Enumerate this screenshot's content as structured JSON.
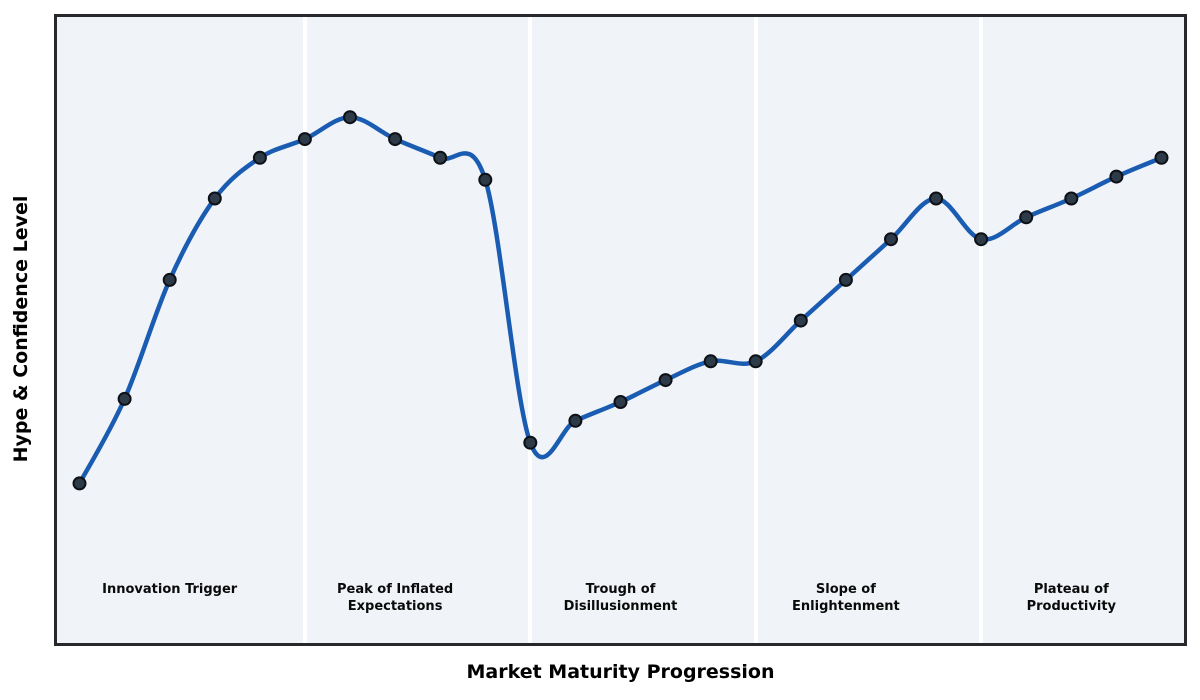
{
  "figure": {
    "title": "",
    "x_axis_title": "Market Maturity Progression",
    "y_axis_title": "Hype & Confidence Level"
  },
  "chart_data": {
    "type": "line",
    "title": "",
    "xlabel": "Market Maturity Progression",
    "ylabel": "Hype & Confidence Level",
    "x": [
      0,
      1,
      2,
      3,
      4,
      5,
      6,
      7,
      8,
      9,
      10,
      11,
      12,
      13,
      14,
      15,
      16,
      17,
      18,
      19,
      20,
      21,
      22,
      23,
      24
    ],
    "y": [
      25.5,
      39,
      58,
      71,
      77.5,
      80.5,
      84,
      80.5,
      77.5,
      74,
      32,
      35.5,
      38.5,
      42,
      45,
      45,
      51.5,
      58,
      64.5,
      71,
      64.5,
      68,
      71,
      74.5,
      77.5
    ],
    "xlim": [
      -0.5,
      24.5
    ],
    "ylim": [
      0,
      100
    ],
    "grid": false,
    "legend": null,
    "tick_labels_visible": false,
    "curve_style": "smooth-spline",
    "phases": [
      {
        "label": "Innovation Trigger",
        "center_x": 2
      },
      {
        "label": "Peak of Inflated\nExpectations",
        "center_x": 7
      },
      {
        "label": "Trough of\nDisillusionment",
        "center_x": 12
      },
      {
        "label": "Slope of\nEnlightenment",
        "center_x": 17
      },
      {
        "label": "Plateau of\nProductivity",
        "center_x": 22
      }
    ],
    "band_boundaries_x": [
      5,
      10,
      15,
      20
    ],
    "colors": {
      "line": "#1a5cb1",
      "marker_fill": "#2d3a47",
      "marker_edge": "#0d1117",
      "plot_background": "#f0f4f8",
      "band_separator": "#ffffff",
      "plot_border": "#26282c",
      "label_text": "#000000"
    }
  }
}
